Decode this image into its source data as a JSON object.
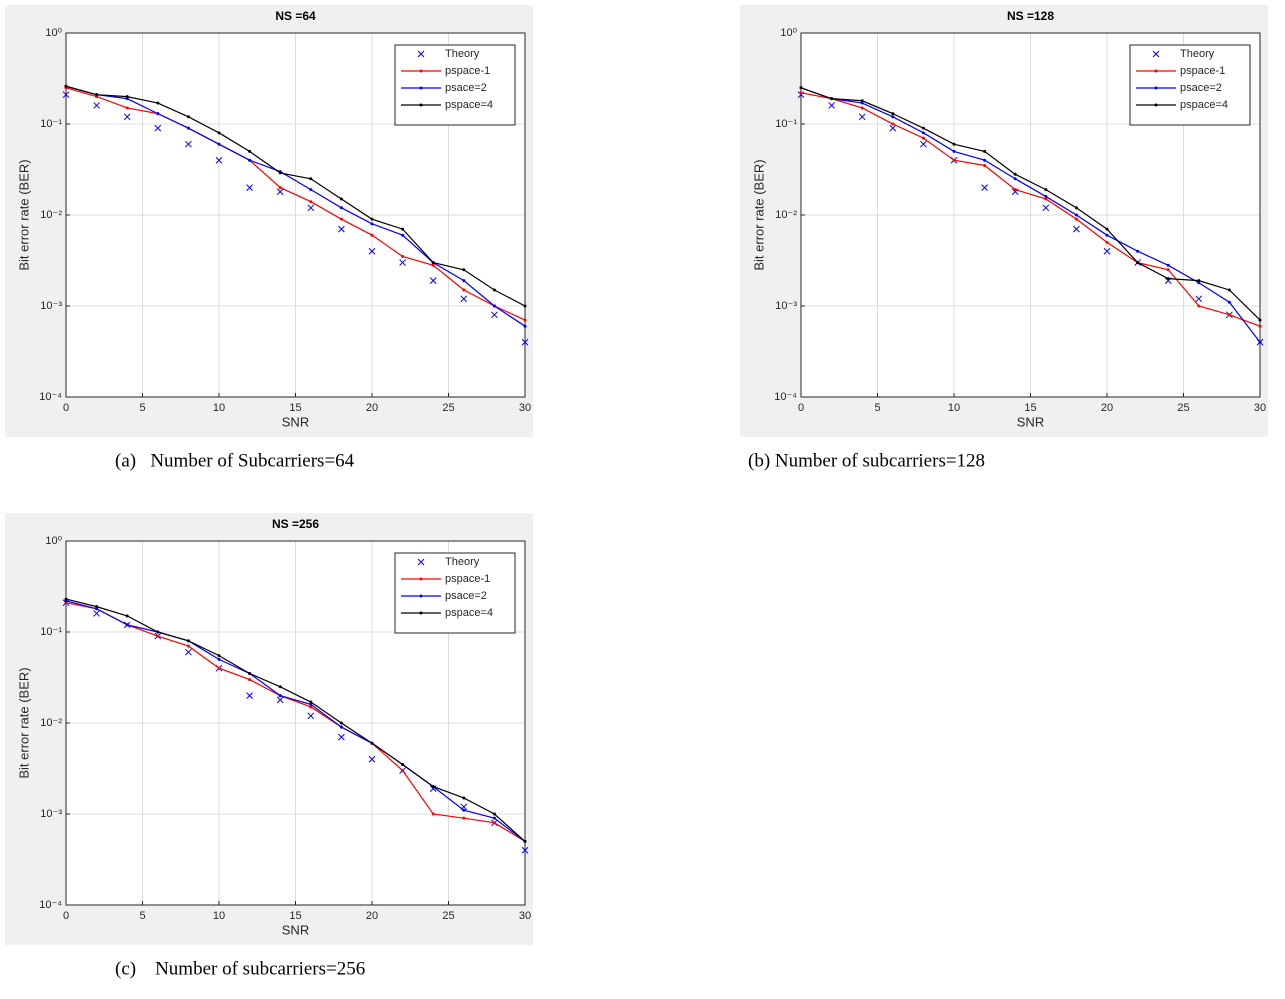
{
  "chart_data": [
    {
      "type": "line",
      "title": "NS =64",
      "caption": "(a)   Number of Subcarriers=64",
      "xlabel": "SNR",
      "ylabel": "Bit error rate (BER)",
      "x": [
        0,
        2,
        4,
        6,
        8,
        10,
        12,
        14,
        16,
        18,
        20,
        22,
        24,
        26,
        28,
        30
      ],
      "xlim": [
        0,
        30
      ],
      "xticks": [
        0,
        5,
        10,
        15,
        20,
        25,
        30
      ],
      "ylim": [
        0.0001,
        1
      ],
      "yscale": "log",
      "yticks": [
        {
          "value": 0.0001,
          "label": "10⁻⁴"
        },
        {
          "value": 0.001,
          "label": "10⁻³"
        },
        {
          "value": 0.01,
          "label": "10⁻²"
        },
        {
          "value": 0.1,
          "label": "10⁻¹"
        },
        {
          "value": 1,
          "label": "10⁰"
        }
      ],
      "grid": true,
      "legend": "upper right",
      "series": [
        {
          "name": "Theory",
          "color": "#0000ff",
          "marker": "x",
          "line": false,
          "values": [
            0.21,
            0.16,
            0.12,
            0.09,
            0.06,
            0.04,
            0.02,
            0.018,
            0.012,
            0.007,
            0.004,
            0.003,
            0.0019,
            0.0012,
            0.0008,
            0.0004
          ]
        },
        {
          "name": "pspace-1",
          "color": "#ff0000",
          "marker": "dot",
          "line": true,
          "values": [
            0.25,
            0.2,
            0.15,
            0.13,
            0.09,
            0.06,
            0.04,
            0.02,
            0.014,
            0.009,
            0.006,
            0.0035,
            0.0028,
            0.0015,
            0.001,
            0.0007
          ]
        },
        {
          "name": "psace=2",
          "color": "#0000ff",
          "marker": "dot",
          "line": true,
          "values": [
            0.26,
            0.21,
            0.19,
            0.13,
            0.09,
            0.06,
            0.04,
            0.03,
            0.019,
            0.012,
            0.008,
            0.006,
            0.003,
            0.0019,
            0.001,
            0.0006
          ]
        },
        {
          "name": "pspace=4",
          "color": "#000000",
          "marker": "dot",
          "line": true,
          "values": [
            0.26,
            0.21,
            0.2,
            0.17,
            0.12,
            0.08,
            0.05,
            0.029,
            0.025,
            0.015,
            0.009,
            0.007,
            0.003,
            0.0025,
            0.0015,
            0.001
          ]
        }
      ]
    },
    {
      "type": "line",
      "title": "NS =128",
      "caption": "(b) Number of subcarriers=128",
      "xlabel": "SNR",
      "ylabel": "Bit error rate (BER)",
      "x": [
        0,
        2,
        4,
        6,
        8,
        10,
        12,
        14,
        16,
        18,
        20,
        22,
        24,
        26,
        28,
        30
      ],
      "xlim": [
        0,
        30
      ],
      "xticks": [
        0,
        5,
        10,
        15,
        20,
        25,
        30
      ],
      "ylim": [
        0.0001,
        1
      ],
      "yscale": "log",
      "yticks": [
        {
          "value": 0.0001,
          "label": "10⁻⁴"
        },
        {
          "value": 0.001,
          "label": "10⁻³"
        },
        {
          "value": 0.01,
          "label": "10⁻²"
        },
        {
          "value": 0.1,
          "label": "10⁻¹"
        },
        {
          "value": 1,
          "label": "10⁰"
        }
      ],
      "grid": true,
      "legend": "upper right",
      "series": [
        {
          "name": "Theory",
          "color": "#0000ff",
          "marker": "x",
          "line": false,
          "values": [
            0.21,
            0.16,
            0.12,
            0.09,
            0.06,
            0.04,
            0.02,
            0.018,
            0.012,
            0.007,
            0.004,
            0.003,
            0.0019,
            0.0012,
            0.0008,
            0.0004
          ]
        },
        {
          "name": "pspace-1",
          "color": "#ff0000",
          "marker": "dot",
          "line": true,
          "values": [
            0.22,
            0.19,
            0.15,
            0.1,
            0.07,
            0.04,
            0.035,
            0.019,
            0.015,
            0.009,
            0.005,
            0.003,
            0.0025,
            0.001,
            0.0008,
            0.0006
          ]
        },
        {
          "name": "psace=2",
          "color": "#0000ff",
          "marker": "dot",
          "line": true,
          "values": [
            0.25,
            0.19,
            0.17,
            0.12,
            0.08,
            0.05,
            0.04,
            0.025,
            0.016,
            0.01,
            0.006,
            0.004,
            0.0028,
            0.0018,
            0.0011,
            0.0004
          ]
        },
        {
          "name": "pspace=4",
          "color": "#000000",
          "marker": "dot",
          "line": true,
          "values": [
            0.25,
            0.19,
            0.18,
            0.13,
            0.09,
            0.06,
            0.05,
            0.028,
            0.019,
            0.012,
            0.007,
            0.003,
            0.002,
            0.0019,
            0.0015,
            0.0007
          ]
        }
      ]
    },
    {
      "type": "line",
      "title": "NS =256",
      "caption": "(c)    Number of subcarriers=256",
      "xlabel": "SNR",
      "ylabel": "Bit error rate (BER)",
      "x": [
        0,
        2,
        4,
        6,
        8,
        10,
        12,
        14,
        16,
        18,
        20,
        22,
        24,
        26,
        28,
        30
      ],
      "xlim": [
        0,
        30
      ],
      "xticks": [
        0,
        5,
        10,
        15,
        20,
        25,
        30
      ],
      "ylim": [
        0.0001,
        1
      ],
      "yscale": "log",
      "yticks": [
        {
          "value": 0.0001,
          "label": "10⁻⁴"
        },
        {
          "value": 0.001,
          "label": "10⁻³"
        },
        {
          "value": 0.01,
          "label": "10⁻²"
        },
        {
          "value": 0.1,
          "label": "10⁻¹"
        },
        {
          "value": 1,
          "label": "10⁰"
        }
      ],
      "grid": true,
      "legend": "upper right",
      "series": [
        {
          "name": "Theory",
          "color": "#0000ff",
          "marker": "x",
          "line": false,
          "values": [
            0.21,
            0.16,
            0.12,
            0.09,
            0.06,
            0.04,
            0.02,
            0.018,
            0.012,
            0.007,
            0.004,
            0.003,
            0.0019,
            0.0012,
            0.0008,
            0.0004
          ]
        },
        {
          "name": "pspace-1",
          "color": "#ff0000",
          "marker": "dot",
          "line": true,
          "values": [
            0.21,
            0.18,
            0.12,
            0.09,
            0.07,
            0.04,
            0.03,
            0.02,
            0.015,
            0.009,
            0.006,
            0.003,
            0.001,
            0.0009,
            0.0008,
            0.0005
          ]
        },
        {
          "name": "psace=2",
          "color": "#0000ff",
          "marker": "dot",
          "line": true,
          "values": [
            0.22,
            0.18,
            0.12,
            0.1,
            0.08,
            0.05,
            0.035,
            0.02,
            0.016,
            0.009,
            0.006,
            0.0035,
            0.002,
            0.0011,
            0.0009,
            0.0005
          ]
        },
        {
          "name": "pspace=4",
          "color": "#000000",
          "marker": "dot",
          "line": true,
          "values": [
            0.23,
            0.19,
            0.15,
            0.1,
            0.08,
            0.055,
            0.035,
            0.025,
            0.017,
            0.01,
            0.006,
            0.0035,
            0.002,
            0.0015,
            0.001,
            0.0005
          ]
        }
      ]
    }
  ]
}
